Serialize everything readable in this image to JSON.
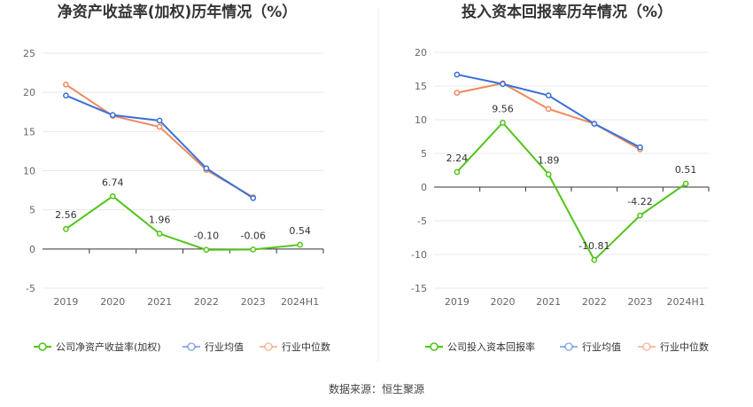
{
  "source_label": "数据来源：恒生聚源",
  "colors": {
    "company": "#52c41a",
    "industry_avg": "#3a6fd8",
    "industry_median": "#ef8a5d",
    "grid": "#e8e8e8",
    "axis": "#333333"
  },
  "chart_data": [
    {
      "type": "line",
      "title": "净资产收益率(加权)历年情况（%）",
      "categories": [
        "2019",
        "2020",
        "2021",
        "2022",
        "2023",
        "2024H1"
      ],
      "ylim": [
        -5,
        25
      ],
      "yticks": [
        -5,
        0,
        5,
        10,
        15,
        20,
        25
      ],
      "grid": true,
      "legend": "bottom",
      "series": [
        {
          "name": "公司净资产收益率(加权)",
          "values": [
            2.56,
            6.74,
            1.96,
            -0.1,
            -0.06,
            0.54
          ],
          "labels": [
            "2.56",
            "6.74",
            "1.96",
            "-0.10",
            "-0.06",
            "0.54"
          ]
        },
        {
          "name": "行业均值",
          "values": [
            19.6,
            17.1,
            16.4,
            10.3,
            6.5,
            null
          ]
        },
        {
          "name": "行业中位数",
          "values": [
            21.0,
            17.0,
            15.6,
            10.1,
            6.6,
            null
          ]
        }
      ]
    },
    {
      "type": "line",
      "title": "投入资本回报率历年情况（%）",
      "categories": [
        "2019",
        "2020",
        "2021",
        "2022",
        "2023",
        "2024H1"
      ],
      "ylim": [
        -15,
        20
      ],
      "yticks": [
        -15,
        -10,
        -5,
        0,
        5,
        10,
        15,
        20
      ],
      "grid": true,
      "legend": "bottom",
      "series": [
        {
          "name": "公司投入资本回报率",
          "values": [
            2.24,
            9.56,
            1.89,
            -10.81,
            -4.22,
            0.51
          ],
          "labels": [
            "2.24",
            "9.56",
            "1.89",
            "-10.81",
            "-4.22",
            "0.51"
          ]
        },
        {
          "name": "行业均值",
          "values": [
            16.7,
            15.3,
            13.6,
            9.4,
            5.9,
            null
          ]
        },
        {
          "name": "行业中位数",
          "values": [
            14.0,
            15.4,
            11.6,
            9.4,
            5.6,
            null
          ]
        }
      ]
    }
  ]
}
